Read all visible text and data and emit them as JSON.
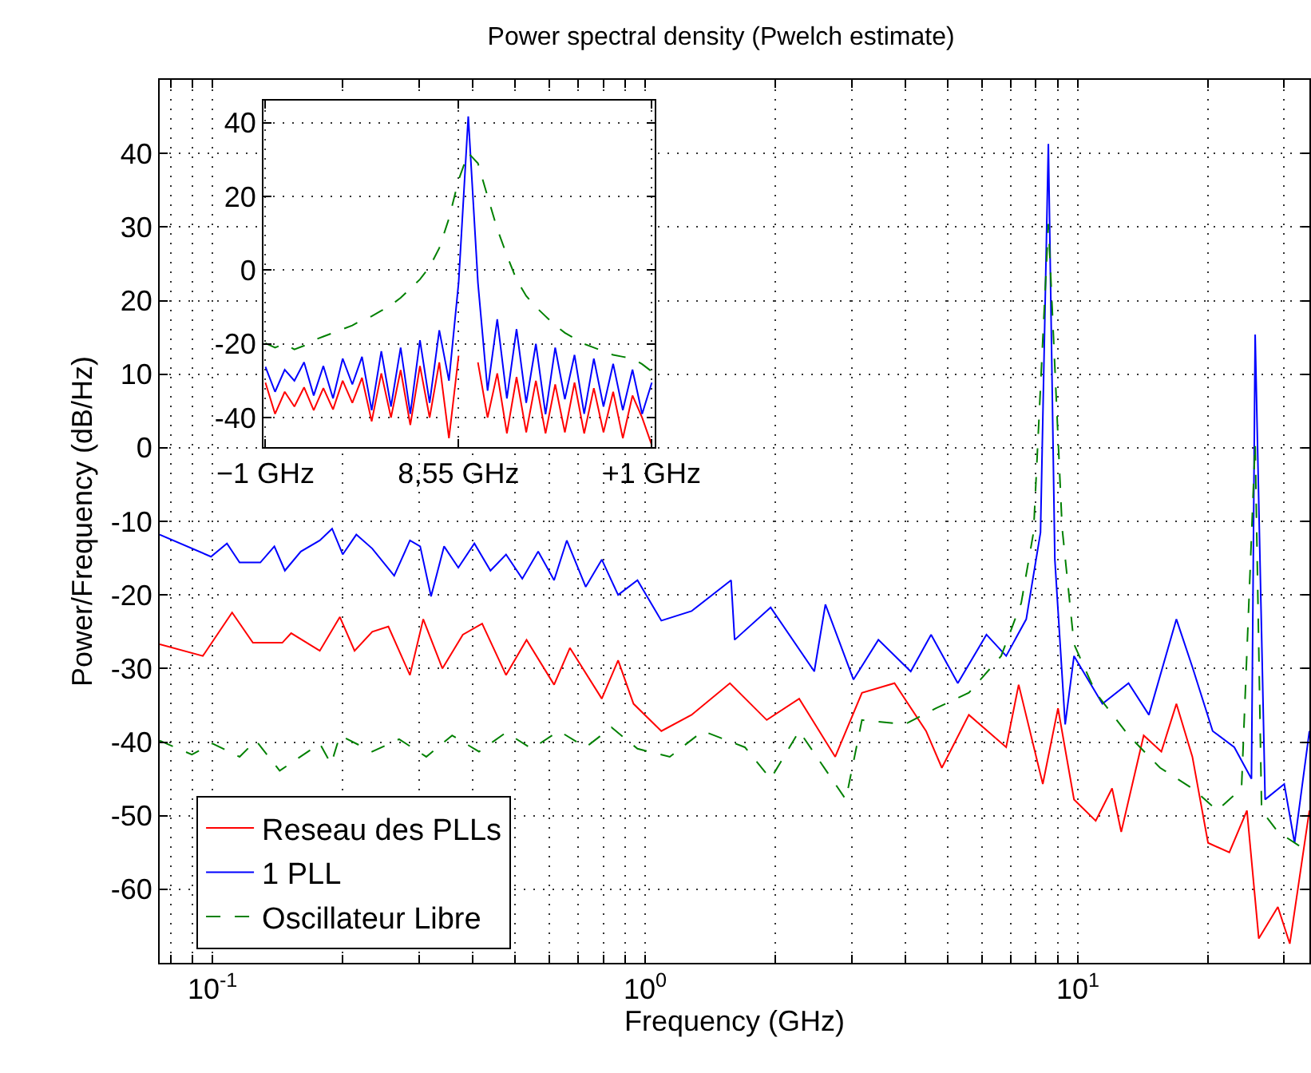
{
  "chart_data": [
    {
      "type": "line",
      "title": "Power spectral density (Pwelch estimate)",
      "xlabel": "Frequency (GHz)",
      "ylabel": "Power/Frequency (dB/Hz)",
      "log": "x",
      "grid": true,
      "legend": "bottom left",
      "xlim": [
        0.0755,
        34.3
      ],
      "ylim": [
        -70,
        50
      ],
      "xticks": [
        {
          "value": 0.08,
          "label": null
        },
        {
          "value": 0.09,
          "label": null
        },
        {
          "value": 0.1,
          "label": "10$^{-1}$"
        },
        {
          "value": 0.2,
          "label": null
        },
        {
          "value": 0.3,
          "label": null
        },
        {
          "value": 0.4,
          "label": null
        },
        {
          "value": 0.5,
          "label": null
        },
        {
          "value": 0.6,
          "label": null
        },
        {
          "value": 0.7,
          "label": null
        },
        {
          "value": 0.8,
          "label": null
        },
        {
          "value": 0.9,
          "label": null
        },
        {
          "value": 1,
          "label": "10$^{0}$"
        },
        {
          "value": 2,
          "label": null
        },
        {
          "value": 3,
          "label": null
        },
        {
          "value": 4,
          "label": null
        },
        {
          "value": 5,
          "label": null
        },
        {
          "value": 6,
          "label": null
        },
        {
          "value": 7,
          "label": null
        },
        {
          "value": 8,
          "label": null
        },
        {
          "value": 9,
          "label": null
        },
        {
          "value": 10,
          "label": "10$^{1}$"
        },
        {
          "value": 20,
          "label": null
        },
        {
          "value": 30,
          "label": null
        }
      ],
      "yticks": [
        -60,
        -50,
        -40,
        -30,
        -20,
        -10,
        0,
        10,
        20,
        30,
        40
      ],
      "series": [
        {
          "name": "Reseau des PLLs",
          "color": "#ff0000",
          "line_style": "solid",
          "x": [
            0.0755,
            0.095,
            0.111,
            0.124,
            0.145,
            0.152,
            0.177,
            0.197,
            0.213,
            0.234,
            0.255,
            0.286,
            0.307,
            0.34,
            0.379,
            0.42,
            0.477,
            0.532,
            0.616,
            0.67,
            0.794,
            0.866,
            0.94,
            1.09,
            1.28,
            1.57,
            1.91,
            2.27,
            2.75,
            3.17,
            3.77,
            4.46,
            4.85,
            5.6,
            6.83,
            7.3,
            8.3,
            9.0,
            9.8,
            11.0,
            12.0,
            12.6,
            14.2,
            15.6,
            16.9,
            18.4,
            20.0,
            22.4,
            24.6,
            26.2,
            29.0,
            30.9,
            34.3
          ],
          "values": [
            -26.7,
            -28.3,
            -22.4,
            -26.5,
            -26.5,
            -25.2,
            -27.6,
            -23.0,
            -27.6,
            -25.0,
            -24.3,
            -30.9,
            -23.3,
            -30.0,
            -25.4,
            -23.9,
            -30.9,
            -26.1,
            -32.2,
            -27.2,
            -34.1,
            -28.9,
            -34.8,
            -38.5,
            -36.3,
            -32.0,
            -37.0,
            -34.1,
            -42.0,
            -33.3,
            -32.0,
            -38.5,
            -43.5,
            -36.3,
            -40.7,
            -32.2,
            -45.7,
            -35.4,
            -47.8,
            -50.7,
            -46.3,
            -52.2,
            -39.1,
            -41.3,
            -34.8,
            -42.0,
            -53.7,
            -55.0,
            -49.3,
            -66.7,
            -62.4,
            -67.4,
            -49.3
          ]
        },
        {
          "name": "1 PLL",
          "color": "#0000ff",
          "line_style": "solid",
          "x": [
            0.0755,
            0.0992,
            0.108,
            0.1155,
            0.129,
            0.139,
            0.147,
            0.16,
            0.177,
            0.189,
            0.2,
            0.215,
            0.234,
            0.263,
            0.286,
            0.302,
            0.32,
            0.343,
            0.37,
            0.403,
            0.439,
            0.477,
            0.52,
            0.566,
            0.616,
            0.659,
            0.729,
            0.794,
            0.866,
            0.96,
            1.09,
            1.28,
            1.58,
            1.61,
            1.95,
            2.46,
            2.61,
            3.03,
            3.46,
            4.11,
            4.58,
            5.28,
            6.15,
            6.83,
            7.6,
            8.2,
            8.55,
            8.85,
            9.35,
            9.8,
            11.4,
            13.1,
            14.6,
            16.9,
            18.4,
            20.5,
            23.0,
            25.2,
            25.7,
            27.1,
            30.0,
            31.7,
            34.3
          ],
          "values": [
            -11.8,
            -14.8,
            -13.0,
            -15.6,
            -15.6,
            -13.4,
            -16.7,
            -14.1,
            -12.6,
            -11.0,
            -14.5,
            -11.8,
            -13.7,
            -17.4,
            -12.6,
            -13.4,
            -20.2,
            -13.4,
            -16.3,
            -13.0,
            -16.7,
            -14.5,
            -17.8,
            -14.1,
            -18.0,
            -12.6,
            -18.9,
            -15.2,
            -20.0,
            -18.0,
            -23.5,
            -22.2,
            -18.0,
            -26.1,
            -21.7,
            -30.4,
            -21.3,
            -31.5,
            -26.1,
            -30.4,
            -25.4,
            -32.0,
            -25.4,
            -28.3,
            -23.3,
            -11.5,
            41.3,
            -15.2,
            -37.6,
            -28.3,
            -34.8,
            -32.0,
            -36.3,
            -23.3,
            -29.8,
            -38.5,
            -40.7,
            -45.0,
            15.4,
            -47.8,
            -45.7,
            -53.7,
            -38.5
          ]
        },
        {
          "name": "Oscillateur Libre",
          "color": "#008000",
          "line_style": "dashed",
          "x": [
            0.0755,
            0.0896,
            0.1,
            0.1155,
            0.126,
            0.143,
            0.177,
            0.188,
            0.197,
            0.234,
            0.27,
            0.312,
            0.358,
            0.413,
            0.477,
            0.547,
            0.632,
            0.729,
            0.836,
            0.96,
            1.14,
            1.36,
            1.7,
            1.95,
            2.27,
            2.91,
            3.17,
            3.98,
            4.7,
            5.6,
            6.65,
            7.4,
            7.9,
            8.55,
            9.2,
            9.8,
            11.0,
            13.1,
            15.5,
            18.4,
            21.0,
            23.9,
            25.7,
            26.6,
            29.0,
            34.3
          ],
          "values": [
            -39.8,
            -41.7,
            -40.2,
            -42.0,
            -39.8,
            -43.9,
            -40.2,
            -43.0,
            -39.1,
            -41.3,
            -39.6,
            -42.0,
            -39.1,
            -41.3,
            -38.7,
            -40.9,
            -38.5,
            -40.7,
            -38.0,
            -40.9,
            -42.0,
            -38.5,
            -40.7,
            -45.0,
            -38.5,
            -47.8,
            -37.0,
            -37.6,
            -35.4,
            -33.3,
            -28.3,
            -21.1,
            -11.5,
            30.4,
            -10.9,
            -26.7,
            -33.3,
            -39.1,
            -43.5,
            -46.3,
            -49.3,
            -46.3,
            0.6,
            -49.3,
            -52.2,
            -55.0
          ]
        }
      ]
    },
    {
      "type": "line",
      "grid": true,
      "ylim": [
        -48,
        46
      ],
      "categories": [
        "−1 GHz",
        null,
        null,
        null,
        null,
        null,
        null,
        null,
        null,
        null,
        null,
        null,
        null,
        null,
        null,
        null,
        null,
        null,
        null,
        null,
        "8,55 GHz",
        null,
        null,
        null,
        null,
        null,
        null,
        null,
        null,
        null,
        null,
        null,
        null,
        null,
        null,
        null,
        null,
        null,
        null,
        null,
        "+1 GHz"
      ],
      "yticks": [
        -40,
        -20,
        0,
        20,
        40
      ],
      "series": [
        {
          "color": "#ff0000",
          "line_style": "solid",
          "values": [
            -30.5,
            -39,
            -33,
            -37,
            -31.8,
            -38,
            -32,
            -37.8,
            -30,
            -36,
            -29.2,
            -41,
            -28,
            -40,
            -27.1,
            -42,
            -26,
            -40,
            -25,
            -45.6,
            -23.2,
            null,
            -25,
            -40,
            -28,
            -44.3,
            -29,
            -44,
            -30,
            -44.3,
            -31,
            -44,
            -30.5,
            -44.3,
            -32,
            -44,
            -33,
            -45.6,
            -34,
            -40,
            -47.5
          ]
        },
        {
          "color": "#0000ff",
          "line_style": "solid",
          "values": [
            -26.2,
            -33,
            -27,
            -30,
            -25,
            -34,
            -26,
            -34.8,
            -24,
            -31,
            -23.5,
            -38,
            -22,
            -37,
            -21,
            -39,
            -19,
            -36,
            -16.3,
            -30,
            -3.4,
            41.7,
            -3.4,
            -32.7,
            -13.3,
            -34.8,
            -16,
            -36,
            -20,
            -39.1,
            -21,
            -35,
            -23,
            -39,
            -24,
            -37,
            -25.4,
            -38,
            -27,
            -39,
            -30.5
          ]
        },
        {
          "color": "#008000",
          "line_style": "dashed",
          "values": [
            -19.8,
            -21,
            -20,
            -21.5,
            -20.5,
            -19,
            -18,
            -17,
            -16,
            -15,
            -13.5,
            -12.5,
            -11,
            -9.5,
            -7.5,
            -5,
            -2.5,
            0.9,
            6,
            14,
            24.5,
            31.8,
            29,
            20,
            11.2,
            4,
            -2.6,
            -7,
            -10,
            -12.5,
            -15,
            -17,
            -18.5,
            -20,
            -21,
            -22,
            -23,
            -23.5,
            -24,
            -25.5,
            -27.5
          ]
        }
      ]
    }
  ]
}
